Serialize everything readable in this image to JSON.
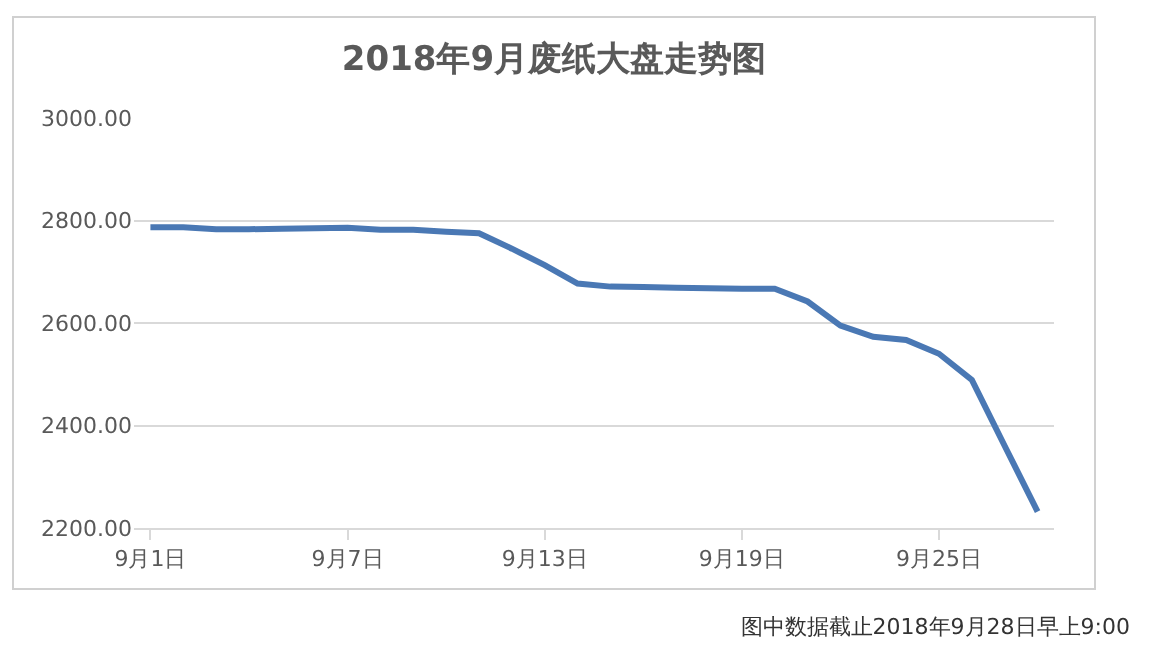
{
  "chart_data": {
    "type": "line",
    "title": "2018年9月废纸大盘走势图",
    "categories": [
      "9月1日",
      null,
      null,
      null,
      null,
      null,
      "9月7日",
      null,
      null,
      null,
      null,
      null,
      "9月13日",
      null,
      null,
      null,
      null,
      null,
      "9月19日",
      null,
      null,
      null,
      null,
      null,
      "9月25日",
      null,
      null,
      null
    ],
    "series": [
      {
        "color": "#4a78b4",
        "values": [
          2787,
          2787,
          2783,
          2783,
          2784,
          2785,
          2786,
          2782,
          2782,
          2778,
          2775,
          2745,
          2713,
          2677,
          2671,
          2670,
          2669,
          2668,
          2667,
          2667,
          2642,
          2595,
          2573,
          2567,
          2540,
          2489,
          2360,
          2232
        ]
      }
    ],
    "ylim": [
      2200,
      3000
    ],
    "yticks": [
      {
        "value": 2200,
        "label": "2200.00"
      },
      {
        "value": 2400,
        "label": "2400.00"
      },
      {
        "value": 2600,
        "label": "2600.00"
      },
      {
        "value": 2800,
        "label": "2800.00"
      },
      {
        "value": 3000,
        "label": "3000.00"
      }
    ],
    "grid": "y",
    "marker": "none",
    "line_style": "solid",
    "annotations": [
      "图中数据截止2018年9月28日早上9:00"
    ]
  }
}
